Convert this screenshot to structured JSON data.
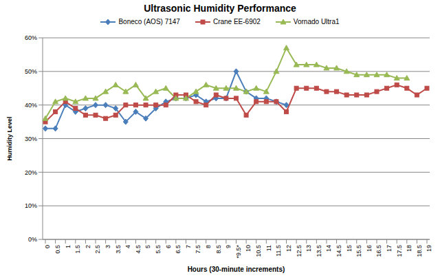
{
  "chart_data": {
    "type": "line",
    "title": "Ultrasonic Humidity Performance",
    "x_label": "Hours (30-minute increments)",
    "y_label": "Humidity Level",
    "categories": [
      "0",
      "0.5",
      "1",
      "1.5",
      "2",
      "2.5",
      "3",
      "3.5",
      "4",
      "4.5",
      "5",
      "5.5",
      "6",
      "6.5",
      "7",
      "7.5",
      "8",
      "8.5",
      "9",
      "*9.5*",
      "10",
      "10.5",
      "11",
      "11.5",
      "12",
      "12.5",
      "13",
      "13.5",
      "14",
      "14.5",
      "15",
      "15.5",
      "16",
      "16.5",
      "17",
      "17.5",
      "18",
      "18.5",
      "19"
    ],
    "series": [
      {
        "name": "Boneco (AOS) 7147",
        "color": "#4a7ebb",
        "marker": "diamond",
        "values": [
          33,
          33,
          40,
          38,
          39,
          40,
          40,
          39,
          35,
          38,
          36,
          39,
          41,
          42,
          42,
          43,
          41,
          42,
          42,
          50,
          44,
          42,
          42,
          41,
          40,
          null,
          null,
          null,
          null,
          null,
          null,
          null,
          null,
          null,
          null,
          null,
          null,
          null,
          null
        ]
      },
      {
        "name": "Crane EE-6902",
        "color": "#be4b48",
        "marker": "square",
        "values": [
          35,
          38,
          41,
          39,
          37,
          37,
          36,
          37,
          40,
          40,
          40,
          40,
          40,
          43,
          43,
          41,
          40,
          43,
          42,
          42,
          37,
          41,
          41,
          41,
          38,
          45,
          45,
          45,
          44,
          44,
          43,
          43,
          43,
          44,
          45,
          46,
          45,
          43,
          45
        ]
      },
      {
        "name": "Vornado Ultra1",
        "color": "#98b954",
        "marker": "triangle",
        "values": [
          36,
          41,
          42,
          41,
          42,
          42,
          44,
          46,
          44,
          46,
          42,
          44,
          45,
          42,
          42,
          44,
          46,
          45,
          45,
          45,
          44,
          45,
          44,
          50,
          57,
          52,
          52,
          52,
          51,
          51,
          50,
          49,
          49,
          49,
          49,
          48,
          48,
          null,
          null
        ]
      }
    ],
    "ylim": [
      0,
      60
    ],
    "yticks": [
      {
        "value": 0,
        "label": "0%"
      },
      {
        "value": 10,
        "label": "10%"
      },
      {
        "value": 20,
        "label": "20%"
      },
      {
        "value": 30,
        "label": "30%"
      },
      {
        "value": 40,
        "label": "40%"
      },
      {
        "value": 50,
        "label": "50%"
      },
      {
        "value": 60,
        "label": "60%"
      }
    ],
    "grid": true,
    "legend": "top"
  }
}
